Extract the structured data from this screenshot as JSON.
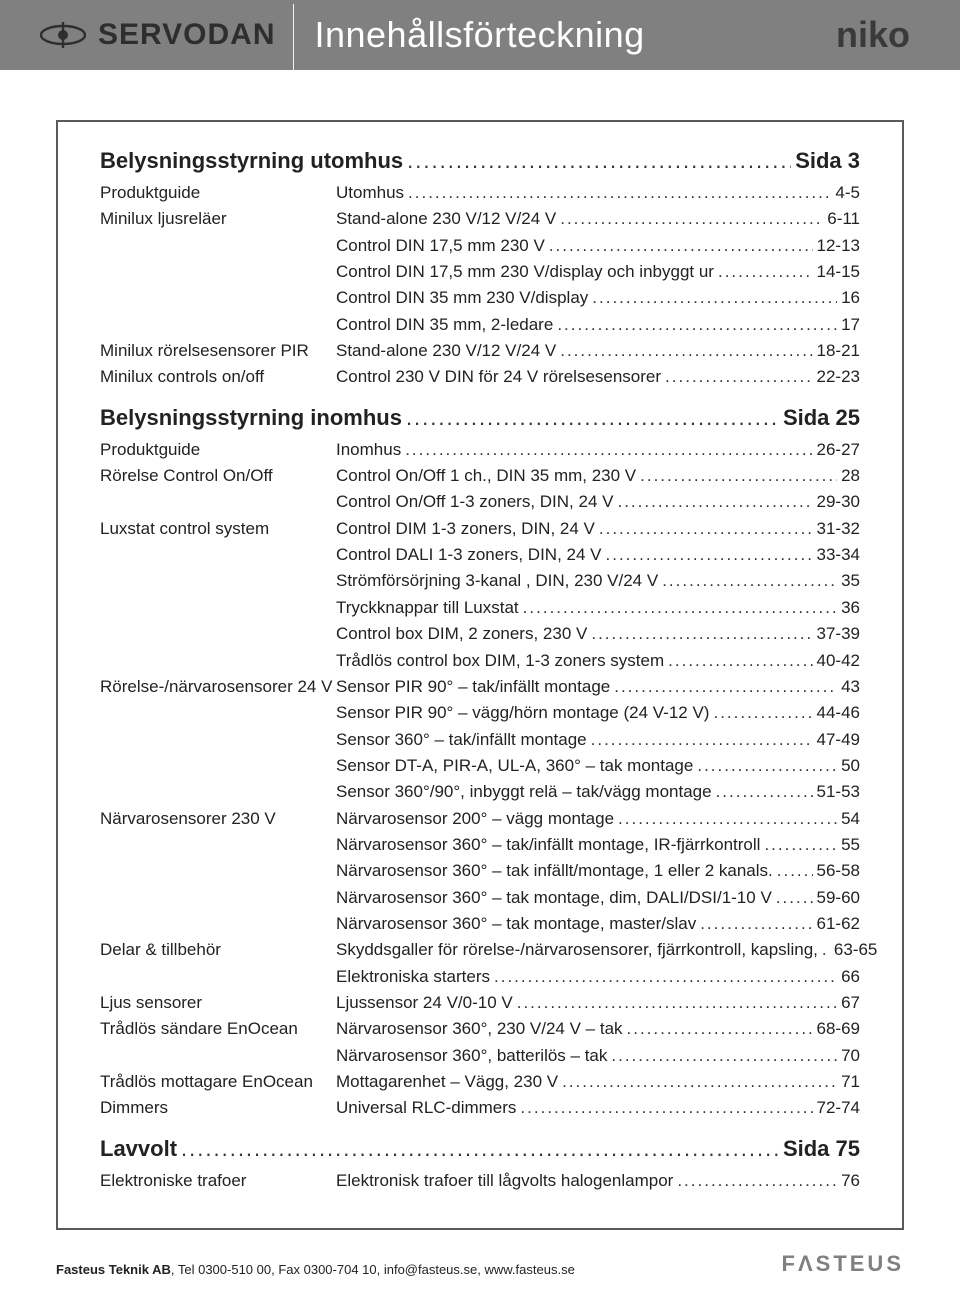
{
  "header": {
    "brand_servodan": "SERVODAN",
    "brand_niko": "niko",
    "title": "Innehållsförteckning"
  },
  "colors": {
    "header_bg": "#808080",
    "header_title": "#ffffff",
    "text": "#222222",
    "border": "#5a5a5a",
    "logo_dark": "#2e2e2e",
    "footer_logo": "#808080"
  },
  "typography": {
    "title_fontsize": 36,
    "section_heading_fontsize": 22,
    "entry_fontsize": 17,
    "footer_fontsize": 13
  },
  "sections": [
    {
      "title": "Belysningsstyrning utomhus",
      "page": "Sida 3",
      "entries": [
        {
          "label": "Produktguide",
          "desc": "Utomhus",
          "page": "4-5"
        },
        {
          "label": "Minilux ljusreläer",
          "desc": "Stand-alone 230 V/12 V/24 V",
          "page": "6-11"
        },
        {
          "label": "",
          "desc": "Control DIN 17,5 mm 230 V",
          "page": "12-13"
        },
        {
          "label": "",
          "desc": "Control DIN 17,5 mm 230 V/display och inbyggt ur",
          "page": "14-15"
        },
        {
          "label": "",
          "desc": "Control DIN 35 mm 230 V/display",
          "page": "16"
        },
        {
          "label": "",
          "desc": "Control DIN 35 mm, 2-ledare",
          "page": "17"
        },
        {
          "label": "Minilux rörelsesensorer PIR",
          "desc": "Stand-alone 230 V/12 V/24 V",
          "page": "18-21"
        },
        {
          "label": "Minilux controls on/off",
          "desc": "Control 230 V DIN för 24 V rörelsesensorer",
          "page": "22-23"
        }
      ]
    },
    {
      "title": "Belysningsstyrning inomhus",
      "page": "Sida 25",
      "entries": [
        {
          "label": "Produktguide",
          "desc": "Inomhus",
          "page": "26-27"
        },
        {
          "label": "Rörelse Control On/Off",
          "desc": "Control On/Off  1 ch., DIN 35 mm, 230 V",
          "page": "28"
        },
        {
          "label": "",
          "desc": "Control On/Off 1-3 zoners, DIN, 24 V",
          "page": "29-30"
        },
        {
          "label": "Luxstat control system",
          "desc": "Control DIM 1-3 zoners, DIN, 24 V",
          "page": "31-32"
        },
        {
          "label": "",
          "desc": "Control DALI 1-3 zoners, DIN, 24 V",
          "page": "33-34"
        },
        {
          "label": "",
          "desc": "Strömförsörjning 3-kanal , DIN, 230 V/24 V",
          "page": "35"
        },
        {
          "label": "",
          "desc": "Tryckknappar till Luxstat",
          "page": "36"
        },
        {
          "label": "",
          "desc": "Control box DIM, 2 zoners, 230 V",
          "page": "37-39"
        },
        {
          "label": "",
          "desc": "Trådlös control box DIM, 1-3 zoners system",
          "page": "40-42"
        },
        {
          "label": "Rörelse-/närvarosensorer 24 V",
          "desc": "Sensor PIR 90° – tak/infällt montage",
          "page": "43"
        },
        {
          "label": "",
          "desc": "Sensor PIR 90° – vägg/hörn montage (24 V-12 V)",
          "page": "44-46"
        },
        {
          "label": "",
          "desc": "Sensor 360° – tak/infällt montage",
          "page": "47-49"
        },
        {
          "label": "",
          "desc": "Sensor DT-A, PIR-A, UL-A, 360° – tak montage",
          "page": "50"
        },
        {
          "label": "",
          "desc": "Sensor 360°/90°, inbyggt relä – tak/vägg montage",
          "page": "51-53"
        },
        {
          "label": "Närvarosensorer 230 V",
          "desc": "Närvarosensor 200° – vägg montage",
          "page": "54"
        },
        {
          "label": "",
          "desc": "Närvarosensor 360° – tak/infällt montage, IR-fjärrkontroll",
          "page": "55"
        },
        {
          "label": "",
          "desc": "Närvarosensor 360° – tak infällt/montage, 1 eller 2 kanals.",
          "page": "56-58"
        },
        {
          "label": "",
          "desc": "Närvarosensor 360° – tak montage, dim, DALI/DSI/1-10 V",
          "page": "59-60"
        },
        {
          "label": "",
          "desc": "Närvarosensor 360° – tak montage, master/slav",
          "page": "61-62"
        },
        {
          "label": "Delar & tillbehör",
          "desc": "Skyddsgaller för rörelse-/närvarosensorer, fjärrkontroll, kapsling, ",
          "page": "63-65"
        },
        {
          "label": "",
          "desc": "Elektroniska starters",
          "page": "66"
        },
        {
          "label": "Ljus sensorer",
          "desc": "Ljussensor 24 V/0-10 V",
          "page": "67"
        },
        {
          "label": "Trådlös sändare EnOcean",
          "desc": "Närvarosensor 360°, 230 V/24 V – tak",
          "page": "68-69"
        },
        {
          "label": "",
          "desc": "Närvarosensor 360°, batterilös – tak",
          "page": "70"
        },
        {
          "label": "Trådlös mottagare EnOcean",
          "desc": "Mottagarenhet – Vägg, 230 V",
          "page": "71"
        },
        {
          "label": "Dimmers",
          "desc": "Universal RLC-dimmers",
          "page": "72-74"
        }
      ]
    },
    {
      "title": "Lavvolt",
      "page": "Sida 75",
      "entries": [
        {
          "label": "Elektroniske trafoer",
          "desc": "Elektronisk trafoer till lågvolts halogenlampor",
          "page": "76"
        }
      ]
    }
  ],
  "footer": {
    "company": "Fasteus Teknik AB",
    "rest": ", Tel 0300-510 00, Fax 0300-704 10, info@fasteus.se, www.fasteus.se",
    "logo": "FΛSTEUS"
  }
}
